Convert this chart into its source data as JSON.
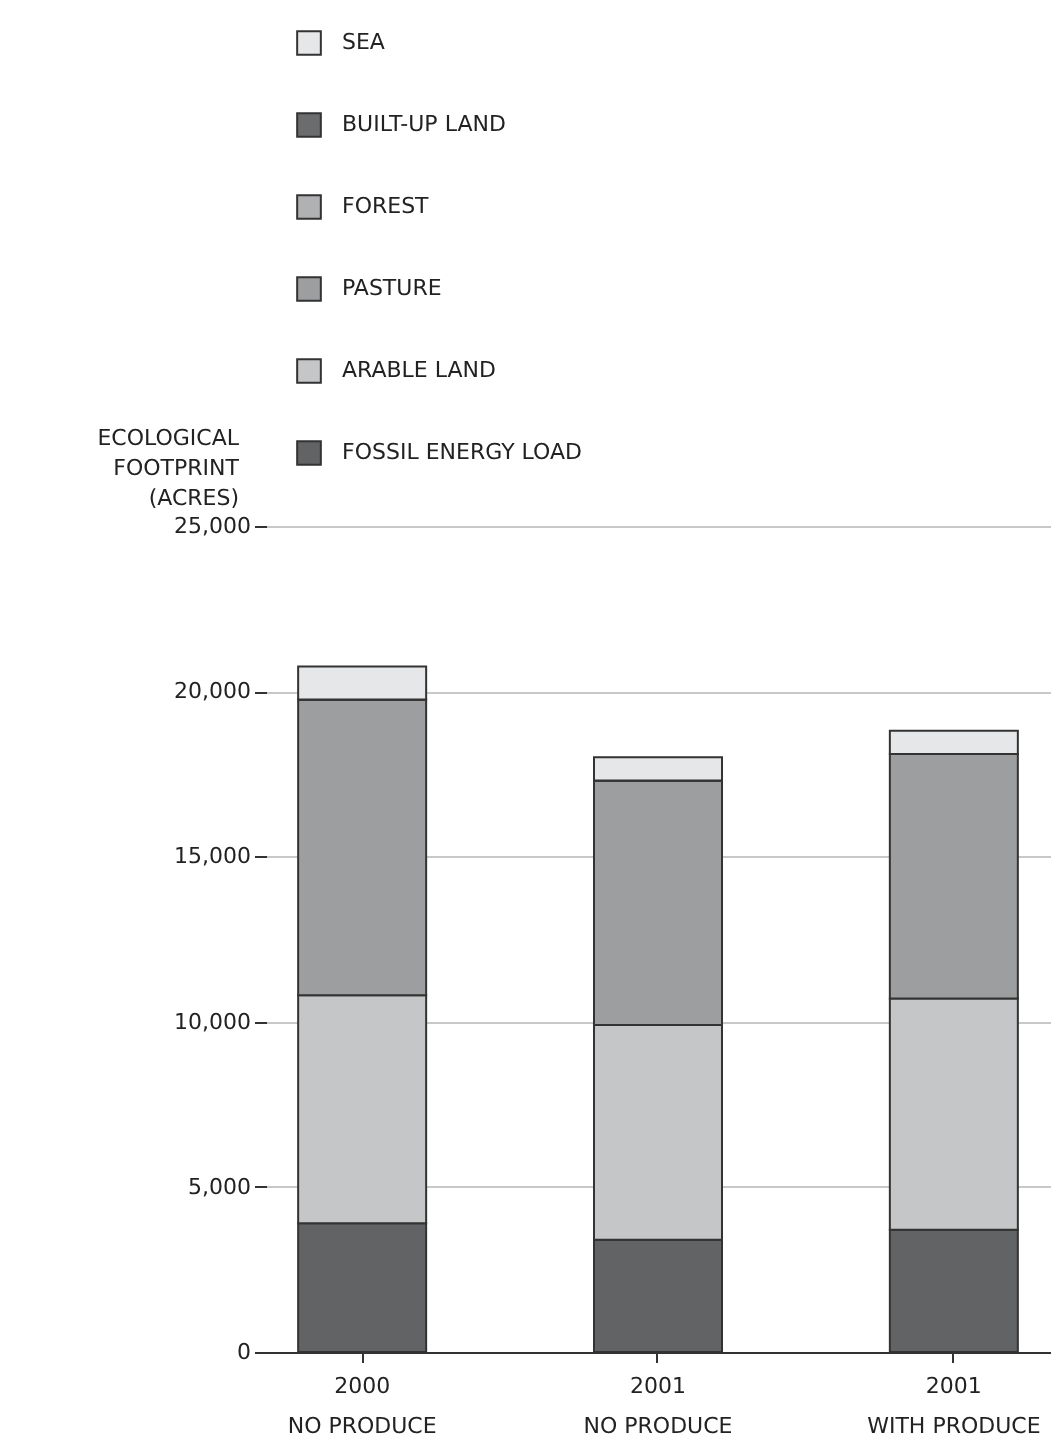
{
  "chart_data": {
    "type": "bar",
    "stacked": true,
    "ylabel": "ECOLOGICAL FOOTPRINT (ACRES)",
    "categories": [
      "2000\nNO PRODUCE",
      "2001\nNO PRODUCE",
      "2001\nWITH PRODUCE"
    ],
    "series": [
      {
        "name": "FOSSIL ENERGY LOAD",
        "color": "#626365",
        "values": [
          3900,
          3400,
          3700
        ]
      },
      {
        "name": "ARABLE LAND",
        "color": "#c5c6c8",
        "values": [
          6900,
          6500,
          7000
        ]
      },
      {
        "name": "PASTURE",
        "color": "#9d9ea0",
        "values": [
          8950,
          7400,
          7400
        ]
      },
      {
        "name": "FOREST",
        "color": "#b0b1b3",
        "values": [
          0,
          0,
          0
        ]
      },
      {
        "name": "BUILT-UP LAND",
        "color": "#6b6c6e",
        "values": [
          0,
          0,
          0
        ]
      },
      {
        "name": "SEA",
        "color": "#e6e7e8",
        "values": [
          1000,
          700,
          700
        ]
      }
    ],
    "ylim": [
      0,
      25000
    ],
    "yticks": [
      {
        "value": 0,
        "label": "0"
      },
      {
        "value": 5000,
        "label": "5,000"
      },
      {
        "value": 10000,
        "label": "10,000"
      },
      {
        "value": 15000,
        "label": "15,000"
      },
      {
        "value": 20000,
        "label": "20,000"
      },
      {
        "value": 25000,
        "label": "25,000"
      }
    ],
    "grid": "y",
    "legend": "top left"
  }
}
